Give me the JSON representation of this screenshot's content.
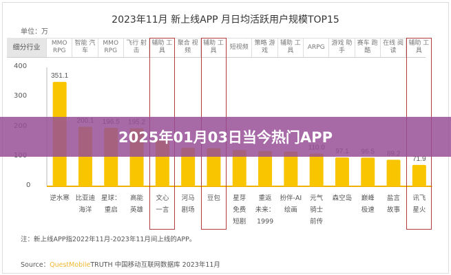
{
  "chart_data": {
    "type": "bar",
    "title": "2023年11月 新上线APP 月日均活跃用户规模TOP15",
    "unit": "单位：万",
    "ylim": [
      0,
      400
    ],
    "yticks": [
      "0",
      "100",
      "200",
      "300",
      "400"
    ],
    "category_header": "细分行业",
    "industries": [
      "MMO RPG",
      "智能 汽车",
      "MMO RPG",
      "飞行 射击",
      "辅助 工具",
      "聚合 视频",
      "辅助 工具",
      "短视频",
      "策略 游戏",
      "辅助 工具",
      "ARPG",
      "游戏 助手",
      "赛车 跑酷",
      "在线 阅读",
      "辅助 工具"
    ],
    "categories": [
      "逆水寒",
      "比亚迪 海洋",
      "星球： 重启",
      "高能 英雄",
      "文心 一言",
      "河马 剧场",
      "豆包",
      "星芽 免费 短剧",
      "重返 未来： 1999",
      "扮伴-AI 绘画",
      "元气 骑士 前传",
      "森空岛",
      "巅峰 极速",
      "盐言 故事",
      "讯飞 星火"
    ],
    "values": [
      351.1,
      200.1,
      196.5,
      195.2,
      156.5,
      129.6,
      128.3,
      122.1,
      118.8,
      117.0,
      110.0,
      97.1,
      96.5,
      89.2,
      71.9
    ],
    "labels": [
      "351.1",
      "200.1",
      "196.5",
      "195.2",
      "",
      "",
      "",
      "",
      "",
      "",
      "110.0",
      "97.1",
      "96.5",
      "89.2",
      "71.9"
    ],
    "highlighted": [
      4,
      6,
      14
    ],
    "bar_color": "#f9c400",
    "highlight_color": "#b23a3a",
    "grid": false
  },
  "note": "注：新上线APP指2022年11月-2023年11月间上线的APP。",
  "source": {
    "prefix": "Source：",
    "brand": "QuestMobile",
    "rest": "TRUTH 中国移动互联网数据库 2023年11月"
  },
  "banner": {
    "text": "2025年01月03日当今热门APP",
    "color": "#964e96"
  }
}
